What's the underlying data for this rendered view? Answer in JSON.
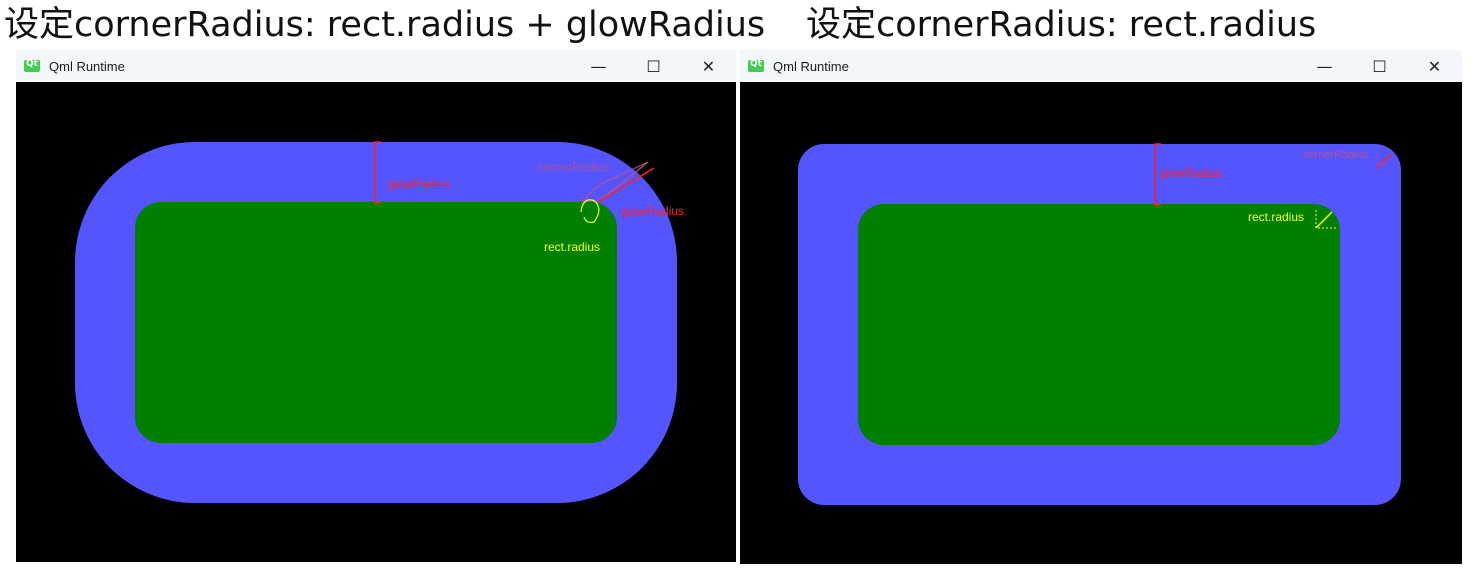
{
  "captions": {
    "left": "设定cornerRadius: rect.radius + glowRadius",
    "right": "设定cornerRadius: rect.radius"
  },
  "windows": [
    {
      "title": "Qml Runtime",
      "controls": {
        "minimize": "—",
        "maximize": "☐",
        "close": "✕"
      },
      "annotations": {
        "glow_radius_side": "glowRadius",
        "corner_radius": "cornerRadius",
        "glow_radius_corner": "glowRadius",
        "rect_radius": "rect.radius"
      }
    },
    {
      "title": "Qml Runtime",
      "controls": {
        "minimize": "—",
        "maximize": "☐",
        "close": "✕"
      },
      "annotations": {
        "glow_radius_side": "glowRadius",
        "corner_radius": "cornerRadius",
        "rect_radius": "rect.radius"
      }
    }
  ],
  "colors": {
    "glow": "#5555ff",
    "rect": "#008000",
    "background": "#000000",
    "annotation_red": "#ff2020",
    "annotation_yellow": "#ffff00"
  },
  "icons": [
    "qt-app-icon",
    "minimize-icon",
    "maximize-icon",
    "close-icon"
  ]
}
